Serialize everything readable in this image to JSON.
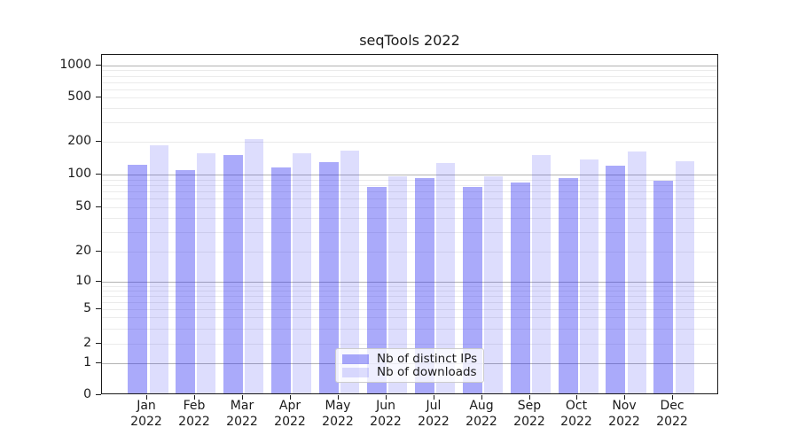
{
  "title": "seqTools 2022",
  "legend": {
    "items": [
      {
        "label": "Nb of distinct IPs"
      },
      {
        "label": "Nb of downloads"
      }
    ]
  },
  "chart_data": {
    "type": "bar",
    "title": "seqTools 2022",
    "categories": [
      "Jan 2022",
      "Feb 2022",
      "Mar 2022",
      "Apr 2022",
      "May 2022",
      "Jun 2022",
      "Jul 2022",
      "Aug 2022",
      "Sep 2022",
      "Oct 2022",
      "Nov 2022",
      "Dec 2022"
    ],
    "series": [
      {
        "name": "Nb of distinct IPs",
        "color": "rgba(43,43,243,0.40)",
        "values": [
          118,
          106,
          145,
          112,
          125,
          74,
          90,
          74,
          82,
          90,
          116,
          84
        ]
      },
      {
        "name": "Nb of downloads",
        "color": "rgba(43,43,243,0.16)",
        "values": [
          180,
          150,
          205,
          150,
          161,
          93,
          124,
          93,
          146,
          133,
          156,
          127
        ]
      }
    ],
    "xlabel": "",
    "ylabel": "",
    "yscale": "log (with 0 baseline)",
    "yticks": [
      0,
      1,
      2,
      5,
      10,
      20,
      50,
      100,
      200,
      500,
      1000
    ],
    "ylim": [
      0,
      1000
    ],
    "grid": true,
    "legend_position": "lower center"
  },
  "colors": {
    "bar_distinct_ips": "rgba(43,43,243,0.40)",
    "bar_downloads": "rgba(43,43,243,0.16)",
    "grid_decade": "#b2b2b2",
    "grid_minor": "#ebebeb",
    "axis": "#1a1a1a"
  }
}
